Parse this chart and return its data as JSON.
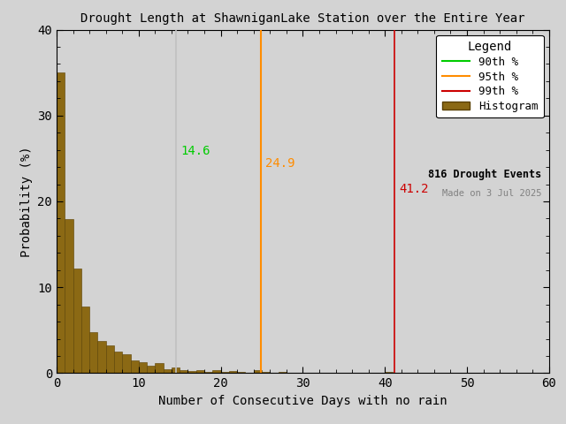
{
  "title": "Drought Length at ShawniganLake Station over the Entire Year",
  "xlabel": "Number of Consecutive Days with no rain",
  "ylabel": "Probability (%)",
  "xlim": [
    0,
    60
  ],
  "ylim": [
    0,
    40
  ],
  "xticks": [
    0,
    10,
    20,
    30,
    40,
    50,
    60
  ],
  "yticks": [
    0,
    10,
    20,
    30,
    40
  ],
  "bar_color": "#8B6914",
  "bar_edgecolor": "#5a4000",
  "percentile_90_val": 14.6,
  "percentile_95_val": 24.9,
  "percentile_99_val": 41.2,
  "percentile_90_line_color": "#c0c0c0",
  "percentile_95_line_color": "#ff8c00",
  "percentile_99_line_color": "#cc0000",
  "percentile_90_label_color": "#00cc00",
  "percentile_95_label_color": "#ff8c00",
  "percentile_99_label_color": "#cc0000",
  "percentile_90_legend_color": "#00cc00",
  "percentile_95_legend_color": "#ff8c00",
  "percentile_99_legend_color": "#cc0000",
  "n_events": 816,
  "watermark": "Made on 3 Jul 2025",
  "legend_title": "Legend",
  "background_color": "#d3d3d3",
  "hist_probs": [
    35.0,
    17.9,
    12.2,
    7.8,
    4.8,
    3.7,
    3.2,
    2.5,
    2.2,
    1.5,
    1.3,
    0.9,
    1.2,
    0.5,
    0.7,
    0.4,
    0.2,
    0.35,
    0.1,
    0.35,
    0.1,
    0.2,
    0.1,
    0.05,
    0.35,
    0.1,
    0.0,
    0.1,
    0.05,
    0.0,
    0.0,
    0.0,
    0.0,
    0.0,
    0.0,
    0.0,
    0.0,
    0.0,
    0.0,
    0.0,
    0.1,
    0.05,
    0.05,
    0.0,
    0.0,
    0.0,
    0.0,
    0.0,
    0.0,
    0.0,
    0.0,
    0.0,
    0.0,
    0.0,
    0.0,
    0.0,
    0.0,
    0.0,
    0.0,
    0.0
  ]
}
